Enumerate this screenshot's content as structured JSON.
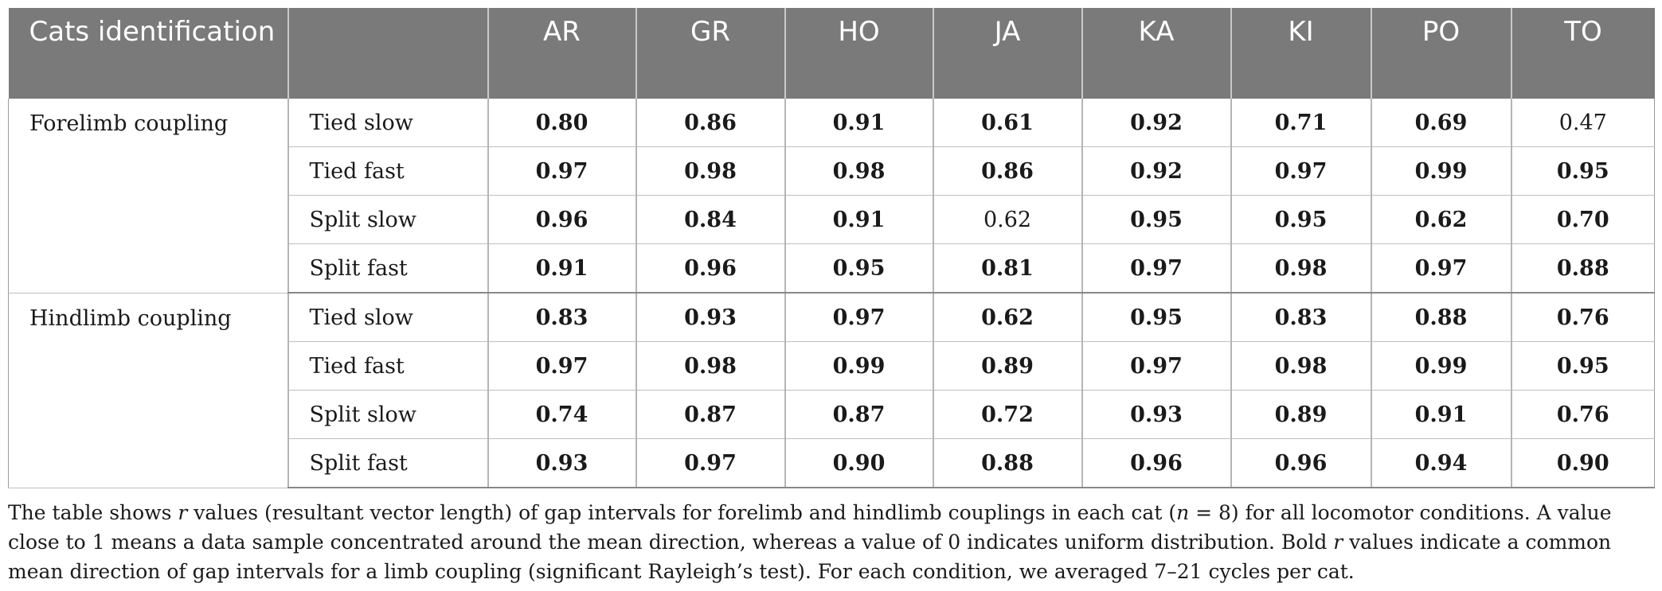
{
  "header": {
    "first": "Cats identification",
    "cats": [
      "AR",
      "GR",
      "HO",
      "JA",
      "KA",
      "KI",
      "PO",
      "TO"
    ]
  },
  "groups": [
    {
      "label": "Forelimb coupling",
      "rows": [
        {
          "cond": "Tied slow",
          "vals": [
            "0.80",
            "0.86",
            "0.91",
            "0.61",
            "0.92",
            "0.71",
            "0.69",
            "0.47"
          ],
          "bold": [
            true,
            true,
            true,
            true,
            true,
            true,
            true,
            false
          ]
        },
        {
          "cond": "Tied fast",
          "vals": [
            "0.97",
            "0.98",
            "0.98",
            "0.86",
            "0.92",
            "0.97",
            "0.99",
            "0.95"
          ],
          "bold": [
            true,
            true,
            true,
            true,
            true,
            true,
            true,
            true
          ]
        },
        {
          "cond": "Split slow",
          "vals": [
            "0.96",
            "0.84",
            "0.91",
            "0.62",
            "0.95",
            "0.95",
            "0.62",
            "0.70"
          ],
          "bold": [
            true,
            true,
            true,
            false,
            true,
            true,
            true,
            true
          ]
        },
        {
          "cond": "Split fast",
          "vals": [
            "0.91",
            "0.96",
            "0.95",
            "0.81",
            "0.97",
            "0.98",
            "0.97",
            "0.88"
          ],
          "bold": [
            true,
            true,
            true,
            true,
            true,
            true,
            true,
            true
          ]
        }
      ]
    },
    {
      "label": "Hindlimb coupling",
      "rows": [
        {
          "cond": "Tied slow",
          "vals": [
            "0.83",
            "0.93",
            "0.97",
            "0.62",
            "0.95",
            "0.83",
            "0.88",
            "0.76"
          ],
          "bold": [
            true,
            true,
            true,
            true,
            true,
            true,
            true,
            true
          ]
        },
        {
          "cond": "Tied fast",
          "vals": [
            "0.97",
            "0.98",
            "0.99",
            "0.89",
            "0.97",
            "0.98",
            "0.99",
            "0.95"
          ],
          "bold": [
            true,
            true,
            true,
            true,
            true,
            true,
            true,
            true
          ]
        },
        {
          "cond": "Split slow",
          "vals": [
            "0.74",
            "0.87",
            "0.87",
            "0.72",
            "0.93",
            "0.89",
            "0.91",
            "0.76"
          ],
          "bold": [
            true,
            true,
            true,
            true,
            true,
            true,
            true,
            true
          ]
        },
        {
          "cond": "Split fast",
          "vals": [
            "0.93",
            "0.97",
            "0.90",
            "0.88",
            "0.96",
            "0.96",
            "0.94",
            "0.90"
          ],
          "bold": [
            true,
            true,
            true,
            true,
            true,
            true,
            true,
            true
          ]
        }
      ]
    }
  ],
  "caption": {
    "p1": "The table shows ",
    "r1": "r",
    "p2": " values (resultant vector length) of gap intervals for forelimb and hindlimb couplings in each cat (",
    "n": "n",
    "p3": " = 8) for all locomotor conditions. A value close to 1 means a data sample concentrated around the mean direction, whereas a value of 0 indicates uniform distribution. Bold ",
    "r2": "r",
    "p4": " values indicate a common mean direction of gap intervals for a limb coupling (significant Rayleigh’s test). For each condition, we averaged 7–21 cycles per cat."
  }
}
